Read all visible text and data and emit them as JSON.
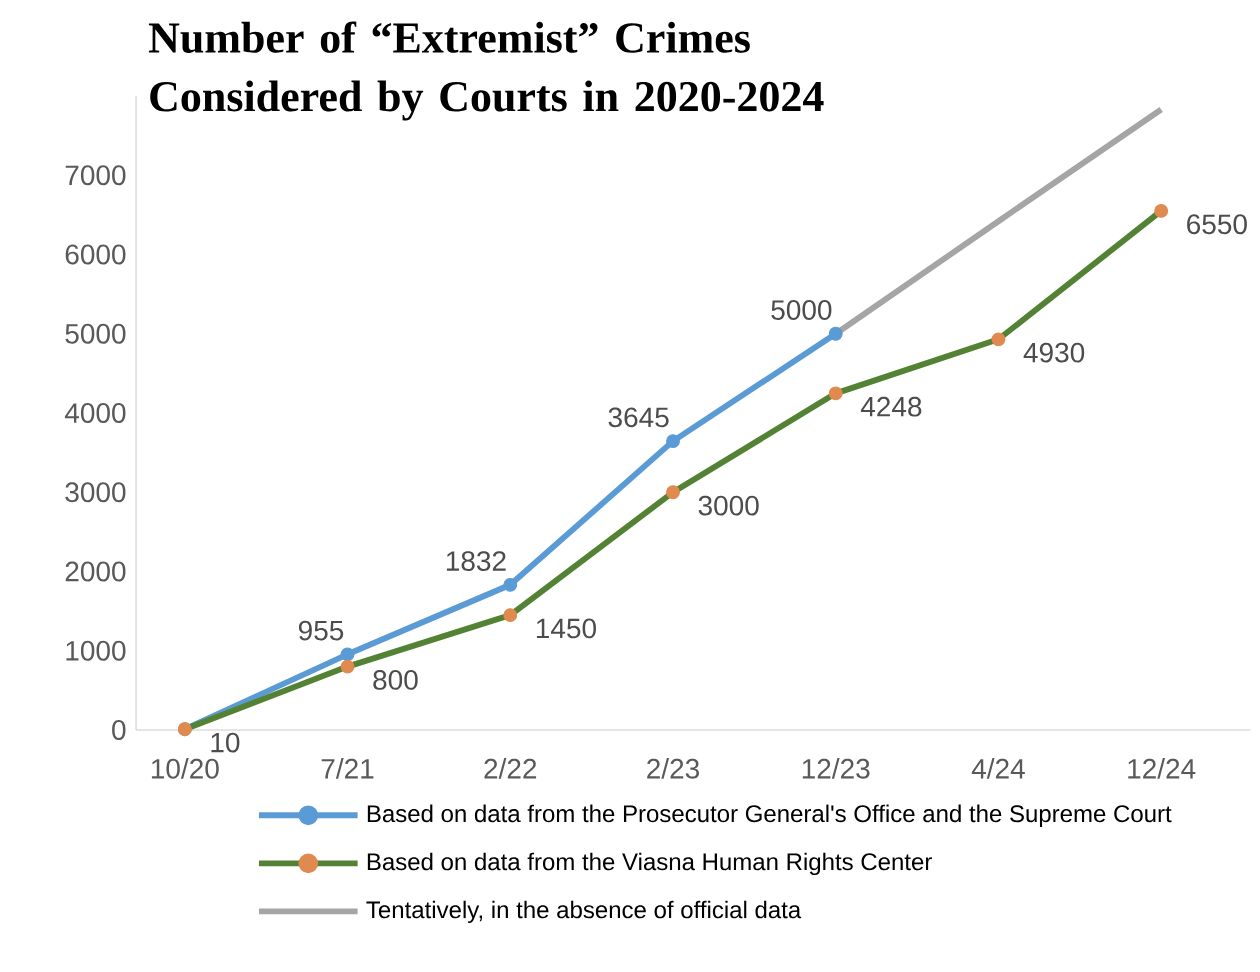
{
  "chart_data": {
    "type": "line",
    "title": "Number of “Extremist” Crimes Considered by Courts in 2020-2024",
    "categories": [
      "10/20",
      "7/21",
      "2/22",
      "2/23",
      "12/23",
      "4/24",
      "12/24"
    ],
    "series": [
      {
        "name": "Based on data from the Prosecutor General's Office and the Supreme Court",
        "color": "#5b9bd5",
        "marker": "circle",
        "values": [
          10,
          955,
          1832,
          3645,
          5000,
          null,
          null
        ],
        "value_labels": [
          null,
          "955",
          "1832",
          "3645",
          "5000",
          null,
          null
        ]
      },
      {
        "name": "Based on data from the Viasna Human Rights Center",
        "color": "#548235",
        "colors": [
          "#e08a50",
          "#e08a50",
          "#e08a50",
          "#e08a50",
          "#e08a50",
          "#e08a50",
          "#e08a50"
        ],
        "marker": "circle",
        "values": [
          10,
          800,
          1450,
          3000,
          4248,
          4930,
          6550
        ],
        "value_labels": [
          "10",
          "800",
          "1450",
          "3000",
          "4248",
          "4930",
          "6550"
        ]
      },
      {
        "name": "Tentatively, in the absence of official data",
        "color": "#a5a5a5",
        "marker": "none",
        "values": [
          null,
          null,
          null,
          null,
          5000,
          6420,
          7830
        ]
      }
    ],
    "ylim": [
      0,
      8000
    ],
    "yticks": [
      0,
      1000,
      2000,
      3000,
      4000,
      5000,
      6000,
      7000
    ],
    "legend": "bottom"
  }
}
